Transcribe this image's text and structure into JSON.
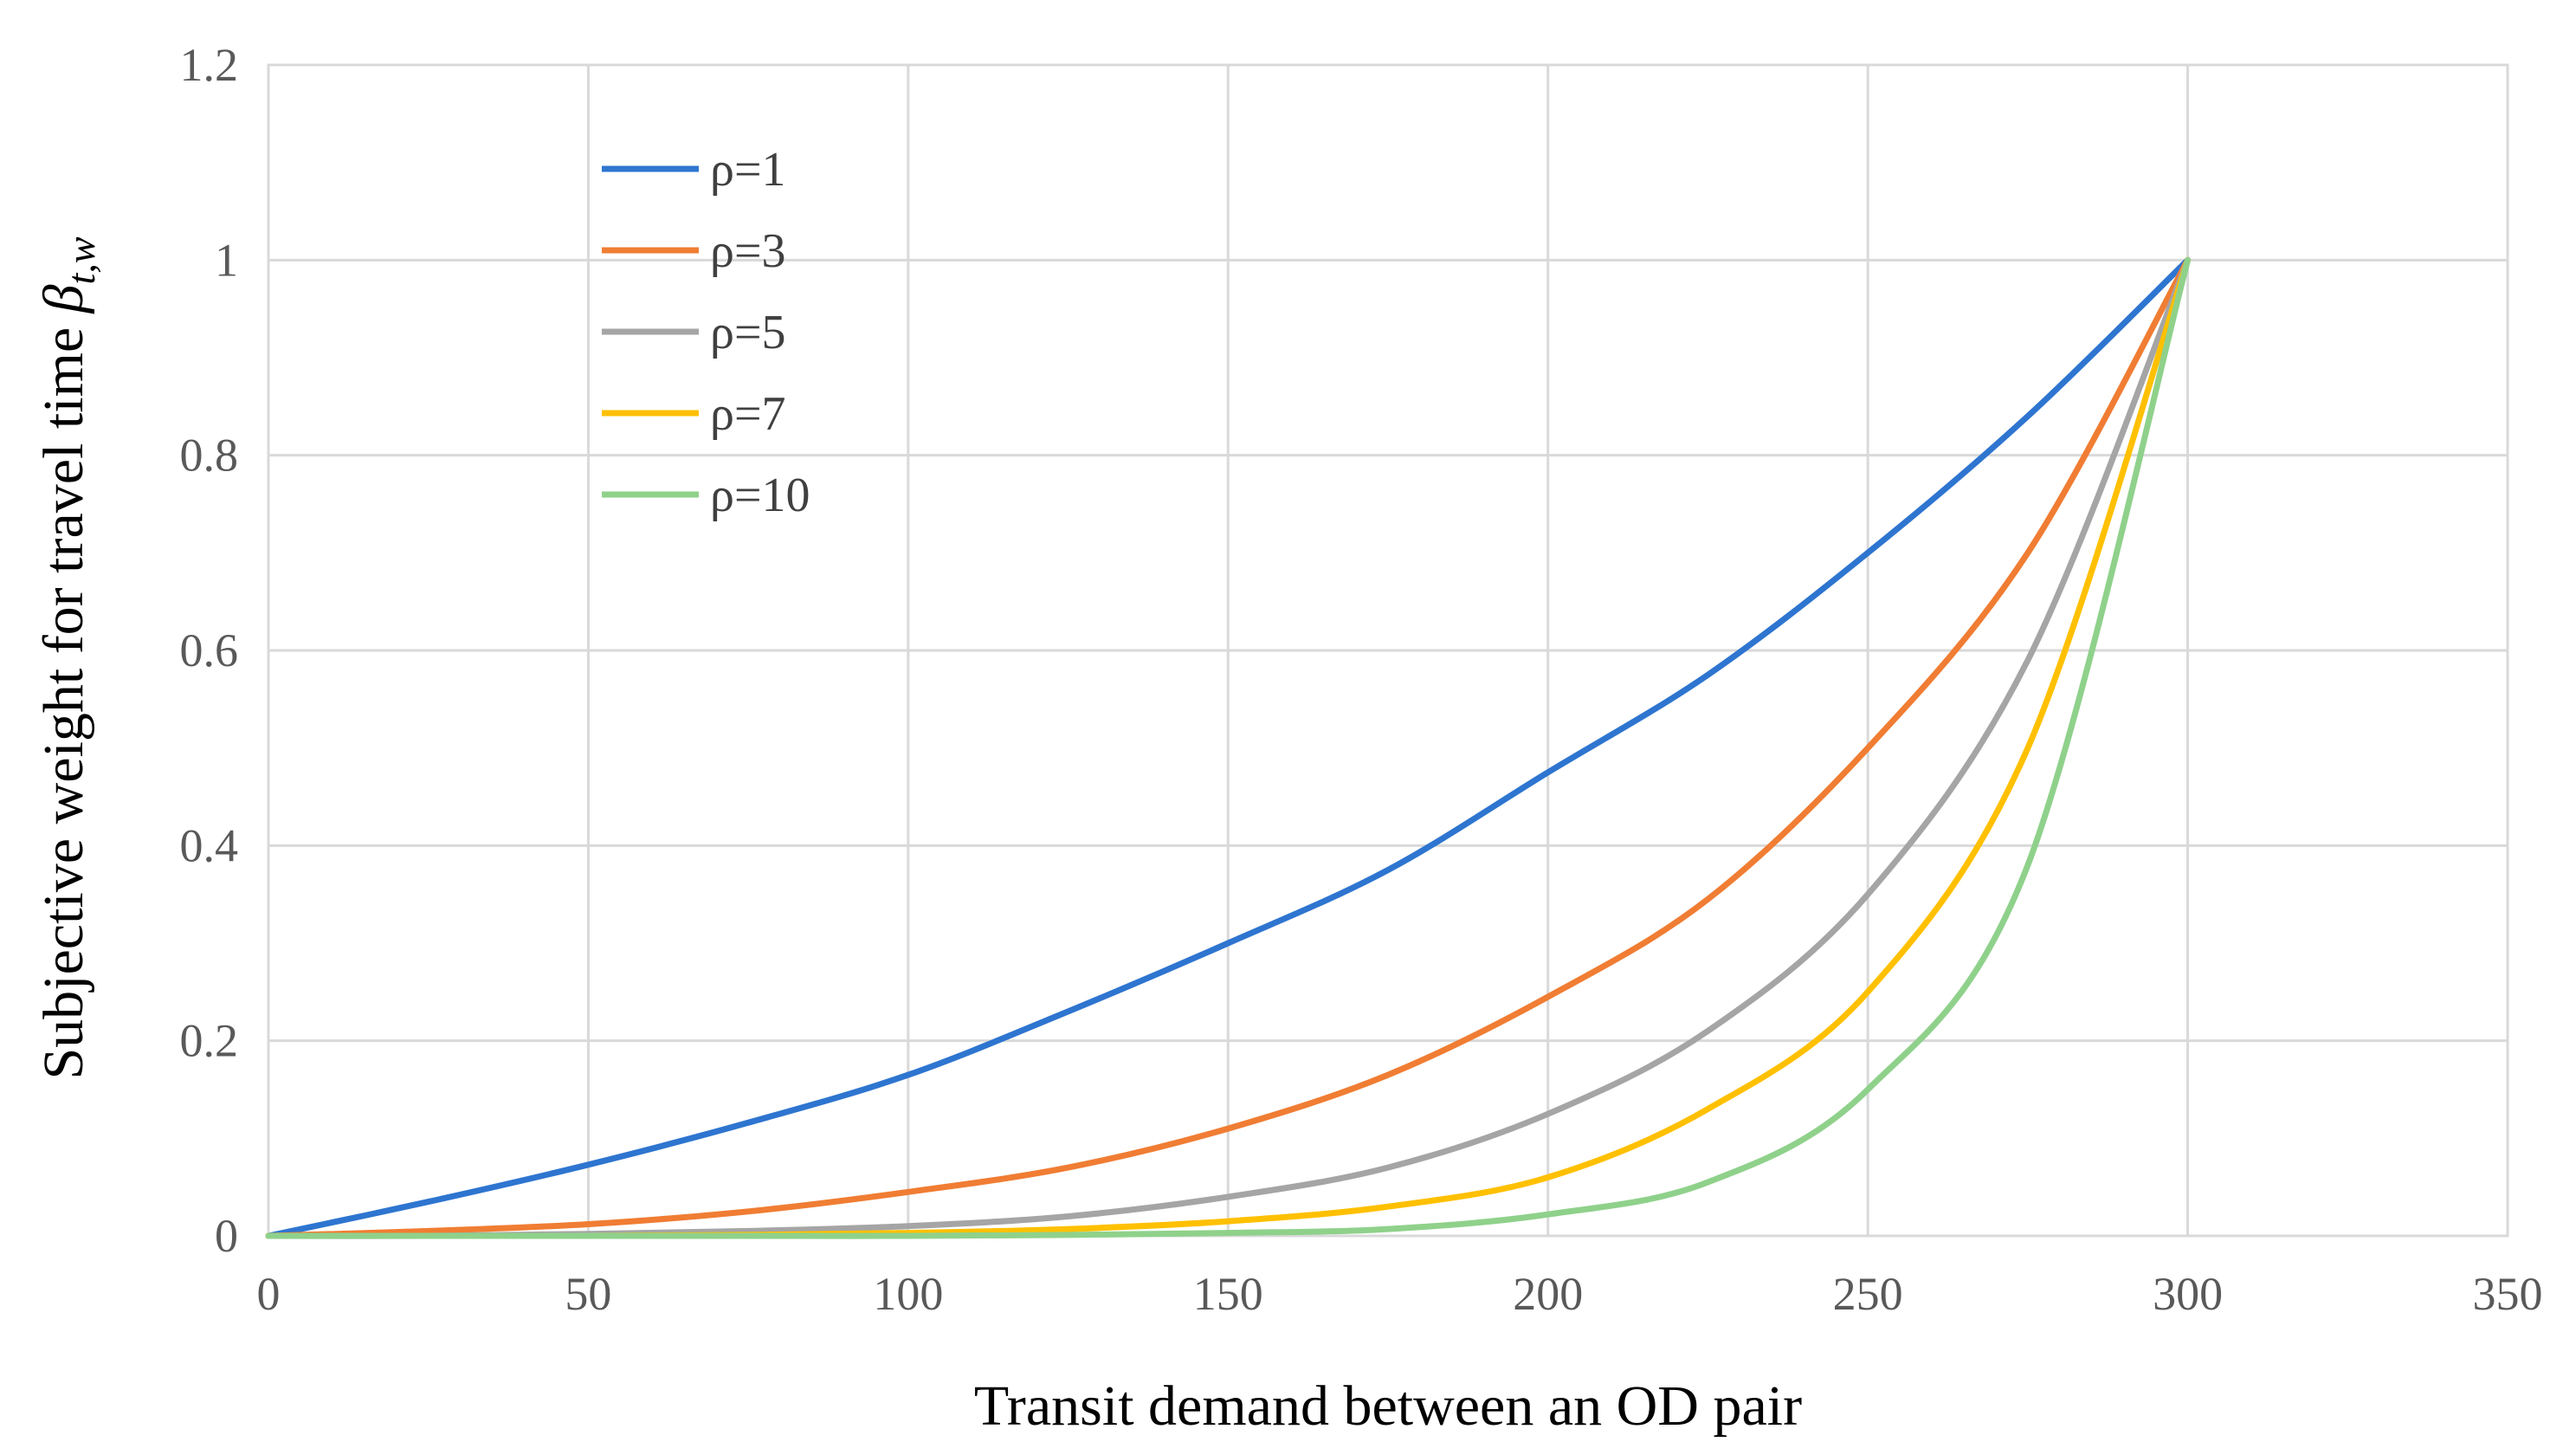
{
  "chart_data": {
    "type": "line",
    "title": "",
    "xlabel": "Transit demand between an OD pair",
    "ylabel_text": "Subjective weight for travel time ",
    "ylabel_symbol": "β",
    "ylabel_subscript": "t,w",
    "xlim": [
      0,
      350
    ],
    "ylim": [
      0,
      1.2
    ],
    "x_ticks": [
      0,
      50,
      100,
      150,
      200,
      250,
      300,
      350
    ],
    "y_ticks": [
      0,
      0.2,
      0.4,
      0.6,
      0.8,
      1,
      1.2
    ],
    "x_tick_labels": [
      "0",
      "50",
      "100",
      "150",
      "200",
      "250",
      "300",
      "350"
    ],
    "y_tick_labels": [
      "0",
      "0.2",
      "0.4",
      "0.6",
      "0.8",
      "1",
      "1.2"
    ],
    "grid": true,
    "legend_position": "top-left",
    "x": [
      0,
      25,
      50,
      75,
      100,
      125,
      150,
      175,
      200,
      225,
      250,
      275,
      300
    ],
    "series": [
      {
        "name": "ρ=1",
        "color": "#2E75D0",
        "values": [
          0,
          0.035,
          0.073,
          0.116,
          0.165,
          0.23,
          0.3,
          0.375,
          0.475,
          0.575,
          0.7,
          0.84,
          1.0
        ]
      },
      {
        "name": "ρ=3",
        "color": "#F07D33",
        "values": [
          0,
          0.005,
          0.012,
          0.025,
          0.045,
          0.07,
          0.11,
          0.165,
          0.245,
          0.345,
          0.5,
          0.7,
          1.0
        ]
      },
      {
        "name": "ρ=5",
        "color": "#A5A5A5",
        "values": [
          0,
          0.0,
          0.002,
          0.005,
          0.01,
          0.02,
          0.04,
          0.07,
          0.125,
          0.21,
          0.35,
          0.59,
          1.0
        ]
      },
      {
        "name": "ρ=7",
        "color": "#FFC000",
        "values": [
          0,
          0.0,
          0.0,
          0.001,
          0.003,
          0.007,
          0.015,
          0.03,
          0.06,
          0.13,
          0.25,
          0.5,
          1.0
        ]
      },
      {
        "name": "ρ=10",
        "color": "#8FD18B",
        "values": [
          0,
          0.0,
          0.0,
          0.0,
          0.0,
          0.001,
          0.003,
          0.007,
          0.022,
          0.055,
          0.15,
          0.38,
          1.0
        ]
      }
    ]
  }
}
